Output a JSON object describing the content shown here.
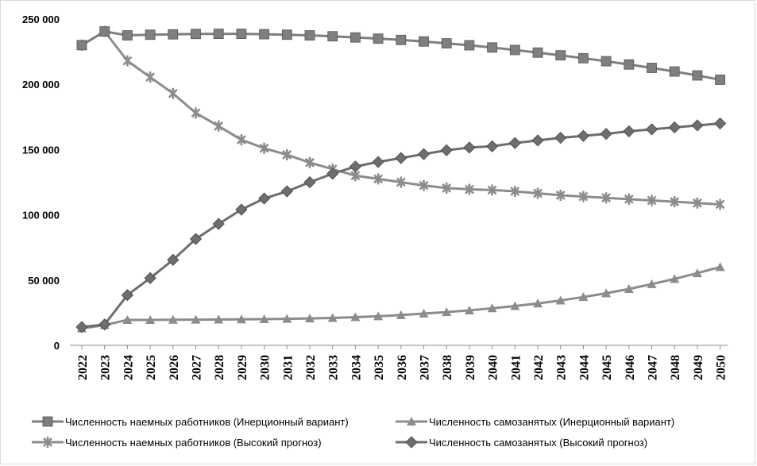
{
  "chart_data": {
    "type": "line",
    "title": "",
    "xlabel": "",
    "ylabel": "",
    "ylim": [
      0,
      250000
    ],
    "yticks": [
      0,
      50000,
      100000,
      150000,
      200000,
      250000
    ],
    "ytick_labels": [
      "0",
      "50 000",
      "100 000",
      "150 000",
      "200 000",
      "250 000"
    ],
    "grid": false,
    "legend_position": "bottom",
    "x": [
      "2022",
      "2023",
      "2024",
      "2025",
      "2026",
      "2027",
      "2028",
      "2029",
      "2030",
      "2031",
      "2032",
      "2033",
      "2034",
      "2035",
      "2036",
      "2037",
      "2038",
      "2039",
      "2040",
      "2041",
      "2042",
      "2043",
      "2044",
      "2045",
      "2046",
      "2047",
      "2048",
      "2049",
      "2050"
    ],
    "series": [
      {
        "name": "Численность наемных работников (Инерционный вариант)",
        "marker": "square",
        "color": "#7f7f7f",
        "values": [
          230000,
          240500,
          237500,
          238000,
          238300,
          238600,
          238700,
          238700,
          238400,
          238000,
          237500,
          236800,
          235900,
          235000,
          234000,
          232800,
          231400,
          229900,
          228200,
          226300,
          224300,
          222200,
          220000,
          217700,
          215200,
          212600,
          209800,
          206800,
          203500
        ]
      },
      {
        "name": "Численность самозанятых (Инерционный вариант)",
        "marker": "triangle",
        "color": "#8c8c8c",
        "values": [
          13000,
          15500,
          19500,
          19500,
          19600,
          19700,
          19800,
          19900,
          20100,
          20300,
          20600,
          21000,
          21600,
          22300,
          23200,
          24300,
          25500,
          26800,
          28400,
          30100,
          32100,
          34400,
          37000,
          39900,
          43200,
          46900,
          50900,
          55300,
          60000
        ]
      },
      {
        "name": "Численность наемных работников (Высокий прогноз)",
        "marker": "cross",
        "color": "#8c8c8c",
        "values": [
          230000,
          240500,
          218000,
          205500,
          193000,
          178000,
          168000,
          157500,
          151000,
          146000,
          140000,
          135000,
          130000,
          127500,
          125000,
          122500,
          120500,
          119500,
          119000,
          118000,
          116500,
          115000,
          114000,
          113000,
          112000,
          111000,
          110000,
          109000,
          108000
        ]
      },
      {
        "name": "Численность самозанятых (Высокий прогноз)",
        "marker": "diamond",
        "color": "#6e6e6e",
        "values": [
          14000,
          16000,
          38500,
          51500,
          65500,
          81500,
          93000,
          104000,
          112500,
          118000,
          125000,
          131500,
          137000,
          140500,
          143500,
          146500,
          149500,
          151500,
          152500,
          155000,
          157000,
          159000,
          160500,
          162000,
          164000,
          165500,
          167000,
          168500,
          170000
        ]
      }
    ]
  }
}
